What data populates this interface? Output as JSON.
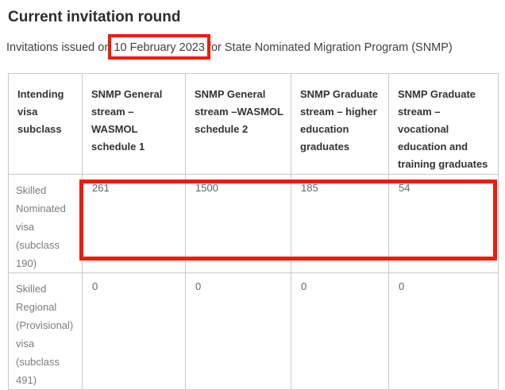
{
  "page": {
    "title": "Current invitation round",
    "intro_prefix": "Invitations issued on",
    "intro_date": "10 February 2023",
    "intro_suffix": "for State Nominated Migration Program (SNMP)"
  },
  "table": {
    "columns": [
      "Intending visa subclass",
      "SNMP General stream – WASMOL schedule 1",
      "SNMP General stream –WASMOL schedule 2",
      "SNMP Graduate stream – higher education graduates",
      "SNMP Graduate stream – vocational education and training graduates"
    ],
    "rows": [
      {
        "label": "Skilled Nominated visa (subclass 190)",
        "values": [
          "261",
          "1500",
          "185",
          "54"
        ]
      },
      {
        "label": "Skilled Regional (Provisional) visa (subclass 491)",
        "values": [
          "0",
          "0",
          "0",
          "0"
        ]
      }
    ]
  },
  "annotations": {
    "highlight_color": "#ee1c0d",
    "boxes": [
      "highlight-around-invitation-date",
      "highlight-around-subclass-190-values"
    ]
  },
  "colors": {
    "heading_text": "#2d2d2d",
    "body_text": "#404040",
    "table_border": "#c9c9c9",
    "header_text": "#333333",
    "label_text": "#7a7d80",
    "value_text": "#59646d"
  }
}
